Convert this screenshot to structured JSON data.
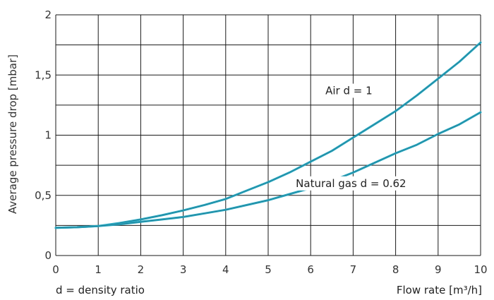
{
  "chart_data": {
    "type": "line",
    "xlabel": "Flow rate [m³/h]",
    "ylabel": "Average pressure drop [mbar]",
    "xlim": [
      0,
      10
    ],
    "ylim": [
      0,
      2
    ],
    "x_ticks": [
      "0",
      "1",
      "2",
      "3",
      "4",
      "5",
      "6",
      "7",
      "8",
      "9",
      "10"
    ],
    "y_ticks": [
      "0",
      "0,5",
      "1",
      "1,5",
      "2"
    ],
    "y_tick_values": [
      0,
      0.5,
      1,
      1.5,
      2
    ],
    "grid": true,
    "line_color": "#29a7c0",
    "series": [
      {
        "name": "Air d = 1",
        "x": [
          0,
          0.5,
          1,
          1.5,
          2,
          2.5,
          3,
          3.5,
          4,
          4.5,
          5,
          5.5,
          6,
          6.5,
          7,
          7.5,
          8,
          8.5,
          9,
          9.5,
          10
        ],
        "y": [
          0.23,
          0.235,
          0.245,
          0.27,
          0.3,
          0.335,
          0.375,
          0.42,
          0.47,
          0.54,
          0.61,
          0.69,
          0.78,
          0.87,
          0.98,
          1.09,
          1.2,
          1.33,
          1.47,
          1.61,
          1.77
        ]
      },
      {
        "name": "Natural gas d = 0.62",
        "x": [
          0,
          0.5,
          1,
          1.5,
          2,
          2.5,
          3,
          3.5,
          4,
          4.5,
          5,
          5.5,
          6,
          6.5,
          7,
          7.5,
          8,
          8.5,
          9,
          9.5,
          10
        ],
        "y": [
          0.23,
          0.235,
          0.245,
          0.26,
          0.28,
          0.3,
          0.32,
          0.35,
          0.38,
          0.42,
          0.46,
          0.51,
          0.56,
          0.62,
          0.69,
          0.77,
          0.85,
          0.92,
          1.01,
          1.09,
          1.19
        ]
      }
    ],
    "annotations": [
      {
        "text": "Air d = 1",
        "x": 6.9,
        "y": 1.34
      },
      {
        "text": "Natural gas d = 0.62",
        "x": 6.95,
        "y": 0.57
      }
    ]
  },
  "footnote": "d = density ratio"
}
